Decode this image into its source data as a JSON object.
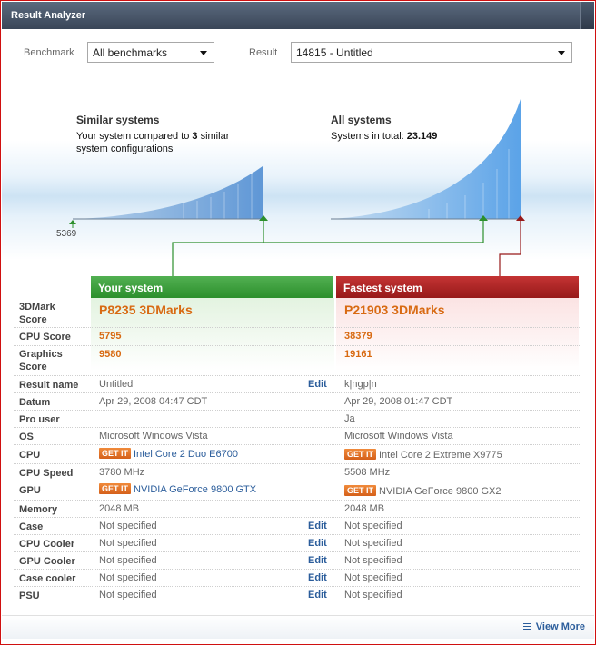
{
  "window": {
    "title": "Result Analyzer"
  },
  "filters": {
    "benchmark_label": "Benchmark",
    "benchmark_value": "All benchmarks",
    "result_label": "Result",
    "result_value": "14815 - Untitled"
  },
  "similar": {
    "title": "Similar systems",
    "line1": "Your system compared to",
    "count": "3",
    "line1_rest": "similar",
    "line2": "system configurations",
    "min_value": "5369"
  },
  "all": {
    "title": "All systems",
    "prefix": "Systems in total:",
    "total": "23.149"
  },
  "colors": {
    "your_system": "#2c8f2c",
    "fastest": "#971919",
    "score": "#d86a12",
    "link": "#2b5d9b"
  },
  "columns": {
    "yours": "Your system",
    "fastest": "Fastest system"
  },
  "get_it_label": "GET IT",
  "edit_label": "Edit",
  "rows": {
    "score": {
      "label": "3DMark Score",
      "yours": "P8235 3DMarks",
      "fastest": "P21903 3DMarks"
    },
    "cpu_score": {
      "label": "CPU Score",
      "yours": "5795",
      "fastest": "38379"
    },
    "graphics_score": {
      "label": "Graphics Score",
      "yours": "9580",
      "fastest": "19161"
    },
    "result_name": {
      "label": "Result name",
      "yours": "Untitled",
      "fastest": "k|ngp|n"
    },
    "datum": {
      "label": "Datum",
      "yours": "Apr 29, 2008 04:47 CDT",
      "fastest": "Apr 29, 2008 01:47 CDT"
    },
    "pro_user": {
      "label": "Pro user",
      "yours": "",
      "fastest": "Ja"
    },
    "os": {
      "label": "OS",
      "yours": "Microsoft Windows Vista",
      "fastest": "Microsoft Windows Vista"
    },
    "cpu": {
      "label": "CPU",
      "yours": "Intel Core 2 Duo E6700",
      "fastest": "Intel Core 2 Extreme X9775"
    },
    "cpu_speed": {
      "label": "CPU Speed",
      "yours": "3780 MHz",
      "fastest": "5508 MHz"
    },
    "gpu": {
      "label": "GPU",
      "yours": "NVIDIA GeForce 9800 GTX",
      "fastest": "NVIDIA GeForce 9800 GX2"
    },
    "memory": {
      "label": "Memory",
      "yours": "2048 MB",
      "fastest": "2048 MB"
    },
    "case": {
      "label": "Case",
      "yours": "Not specified",
      "fastest": "Not specified"
    },
    "cpu_cooler": {
      "label": "CPU Cooler",
      "yours": "Not specified",
      "fastest": "Not specified"
    },
    "gpu_cooler": {
      "label": "GPU Cooler",
      "yours": "Not specified",
      "fastest": "Not specified"
    },
    "case_cooler": {
      "label": "Case cooler",
      "yours": "Not specified",
      "fastest": "Not specified"
    },
    "psu": {
      "label": "PSU",
      "yours": "Not specified",
      "fastest": "Not specified"
    }
  },
  "footer": {
    "view_more": "View More"
  }
}
